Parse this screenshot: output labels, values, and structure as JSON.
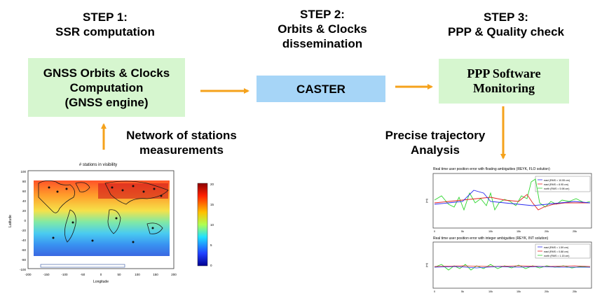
{
  "steps": [
    {
      "heading": "STEP 1:",
      "subheading": "SSR computation"
    },
    {
      "heading": "STEP 2:",
      "subheading": "Orbits & Clocks dissemination"
    },
    {
      "heading": "STEP 3:",
      "subheading": "PPP & Quality check"
    }
  ],
  "boxes": {
    "gnss": [
      "GNSS Orbits & Clocks",
      "Computation",
      "(GNSS engine)"
    ],
    "caster": "CASTER",
    "ppp": [
      "PPP Software",
      "Monitoring"
    ]
  },
  "labels": {
    "network": [
      "Network of stations",
      "measurements"
    ],
    "trajectory": [
      "Precise trajectory",
      "Analysis"
    ]
  },
  "map_plot": {
    "title": "# stations in visibility",
    "xlabel": "Longitude",
    "ylabel": "Latitude",
    "xticks": [
      "-200",
      "-150",
      "-100",
      "-50",
      "0",
      "50",
      "100",
      "150",
      "200"
    ],
    "yticks": [
      "100",
      "80",
      "60",
      "40",
      "20",
      "0",
      "-20",
      "-40",
      "-60",
      "-80",
      "-100"
    ],
    "colorbar_ticks": [
      "20",
      "15",
      "10",
      "5",
      "0"
    ]
  },
  "plot_float": {
    "title": "Real time user position error with floating ambiguities (REYK, FLO solution)",
    "legend": [
      "east (RMS = 10.55 cm)",
      "east (RMS = 8.95 cm)",
      "north (RMS = 5.98 cm)"
    ],
    "ylabel": "(m)",
    "xticks": [
      "0",
      "5k",
      "10k",
      "15k",
      "20k",
      "25k"
    ]
  },
  "plot_int": {
    "title": "Real time user position error with integer ambiguities (REYK, INT solution)",
    "legend": [
      "east (RMS = 1.59 cm)",
      "east (RMS = 0.88 cm)",
      "north (RMS = 1.15 cm)"
    ],
    "ylabel": "(m)",
    "xticks": [
      "0",
      "5k",
      "10k",
      "15k",
      "20k",
      "25k"
    ]
  },
  "colors": {
    "green_box": "#d6f6cf",
    "blue_box": "#a6d5f7",
    "arrow": "#f5a21b",
    "east1": "#2a2af0",
    "east2": "#e52020",
    "north": "#2fd62f"
  }
}
